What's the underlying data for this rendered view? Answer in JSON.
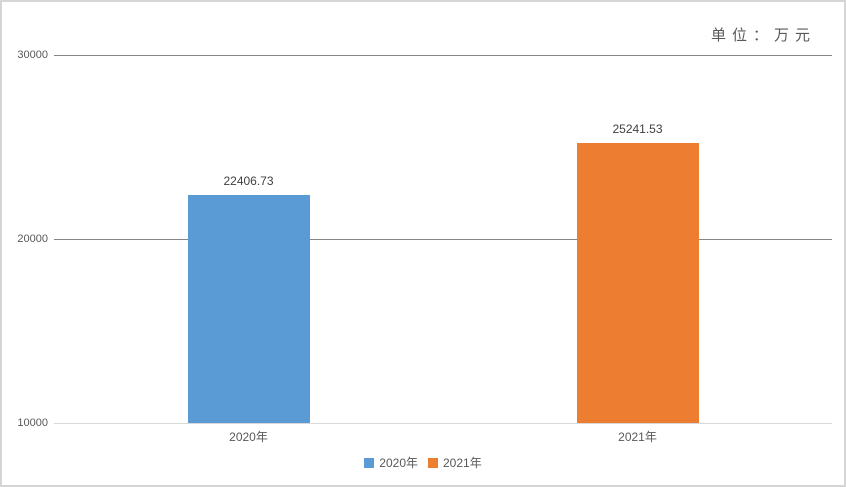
{
  "chart_data": {
    "type": "bar",
    "title": "",
    "unit_label": "单位：万元",
    "categories": [
      "2020年",
      "2021年"
    ],
    "values": [
      22406.73,
      25241.53
    ],
    "data_labels": [
      "22406.73",
      "25241.53"
    ],
    "bar_colors": [
      "#5B9BD5",
      "#ED7D31"
    ],
    "legend": [
      {
        "label": "2020年",
        "color": "#5B9BD5"
      },
      {
        "label": "2021年",
        "color": "#ED7D31"
      }
    ],
    "legend_position": "bottom",
    "grid": true,
    "y_axis": {
      "min": 10000,
      "max": 30000,
      "ticks": [
        10000,
        20000,
        30000
      ],
      "tick_labels": [
        "10000",
        "20000",
        "30000"
      ]
    },
    "colors": {
      "gridline": "#868686",
      "axis_line": "#d9d9d9",
      "tick_text": "#595959",
      "value_text": "#404040",
      "frame_border": "#d5d5d5"
    }
  }
}
